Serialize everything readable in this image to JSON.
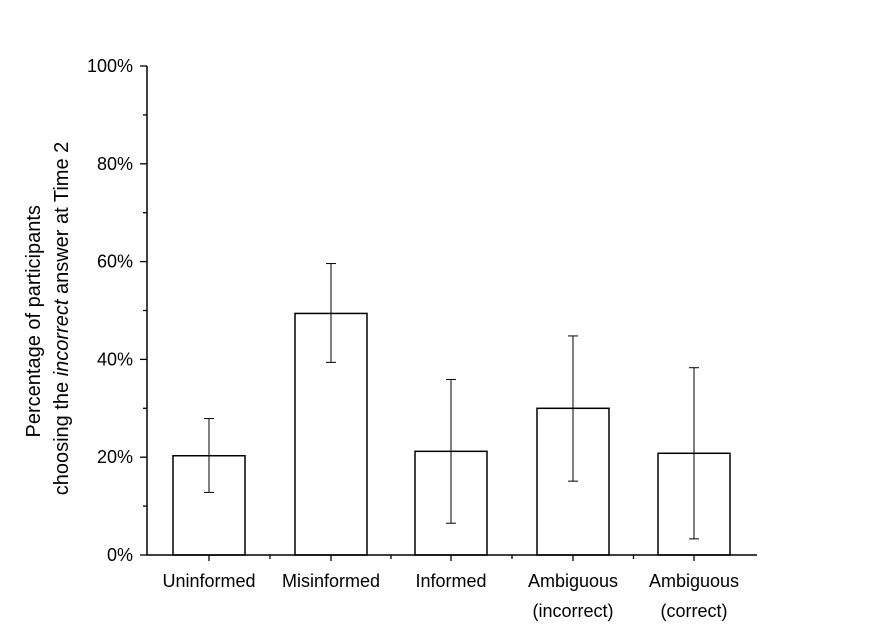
{
  "chart_data": {
    "type": "bar",
    "categories": [
      [
        "Uninformed"
      ],
      [
        "Misinformed"
      ],
      [
        "Informed"
      ],
      [
        "Ambiguous",
        "(incorrect)"
      ],
      [
        "Ambiguous",
        "(correct)"
      ]
    ],
    "values": [
      20.3,
      49.4,
      21.2,
      30.0,
      20.8
    ],
    "error_low": [
      12.8,
      39.4,
      6.5,
      15.1,
      3.3
    ],
    "error_high": [
      27.9,
      59.6,
      35.9,
      44.8,
      38.3
    ],
    "ylim": [
      0,
      100
    ],
    "yticks": [
      "0%",
      "20%",
      "40%",
      "60%",
      "80%",
      "100%"
    ],
    "ytick_values": [
      0,
      20,
      40,
      60,
      80,
      100
    ],
    "ylabel": {
      "line1": "Percentage of participants",
      "line2_pre": "choosing the ",
      "line2_italic": "incorrect",
      "line2_post": " answer at Time 2"
    },
    "grid": false,
    "colors": {
      "bar_fill": "#ffffff",
      "bar_stroke": "#000000"
    }
  }
}
